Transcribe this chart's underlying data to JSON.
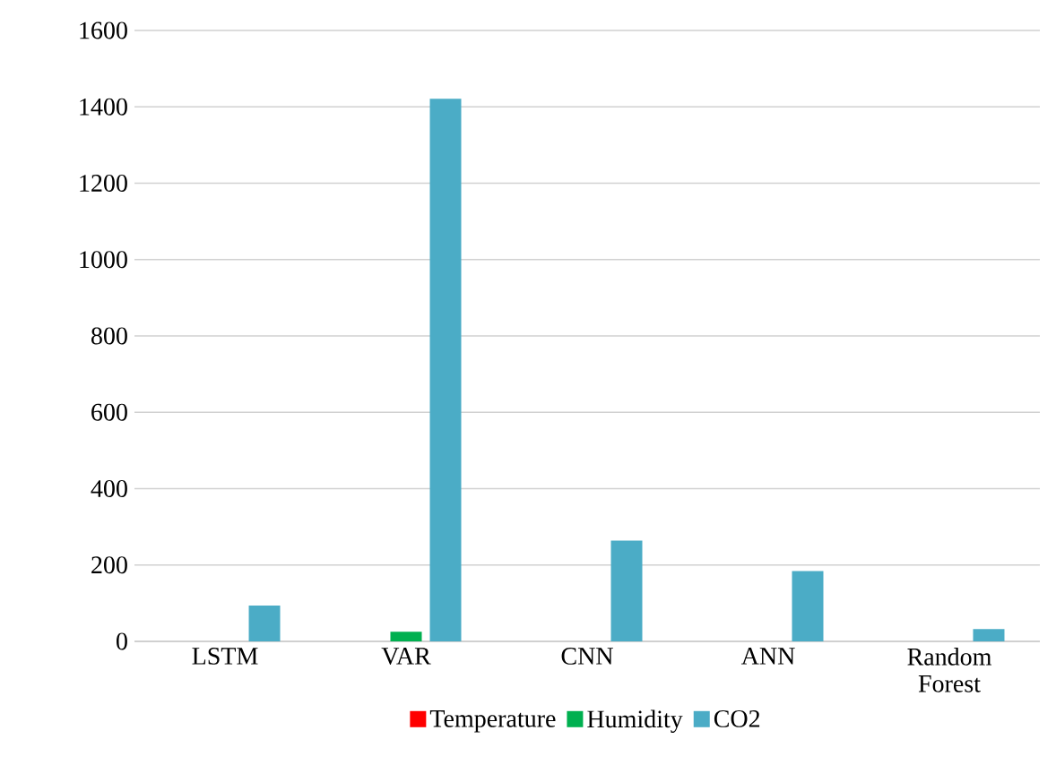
{
  "chart_data": {
    "type": "bar",
    "categories": [
      "LSTM",
      "VAR",
      "CNN",
      "ANN",
      "Random Forest"
    ],
    "series": [
      {
        "name": "Temperature",
        "color": "#ff0000",
        "values": [
          0,
          0,
          0,
          0,
          0
        ]
      },
      {
        "name": "Humidity",
        "color": "#00b050",
        "values": [
          0,
          25,
          0,
          0,
          0
        ]
      },
      {
        "name": "CO2",
        "color": "#4bacc6",
        "values": [
          94,
          1421,
          264,
          184,
          32
        ]
      }
    ],
    "ylim": [
      0,
      1600
    ],
    "yticks": [
      0,
      200,
      400,
      600,
      800,
      1000,
      1200,
      1400,
      1600
    ],
    "grid": "y",
    "legend": "bottom"
  }
}
